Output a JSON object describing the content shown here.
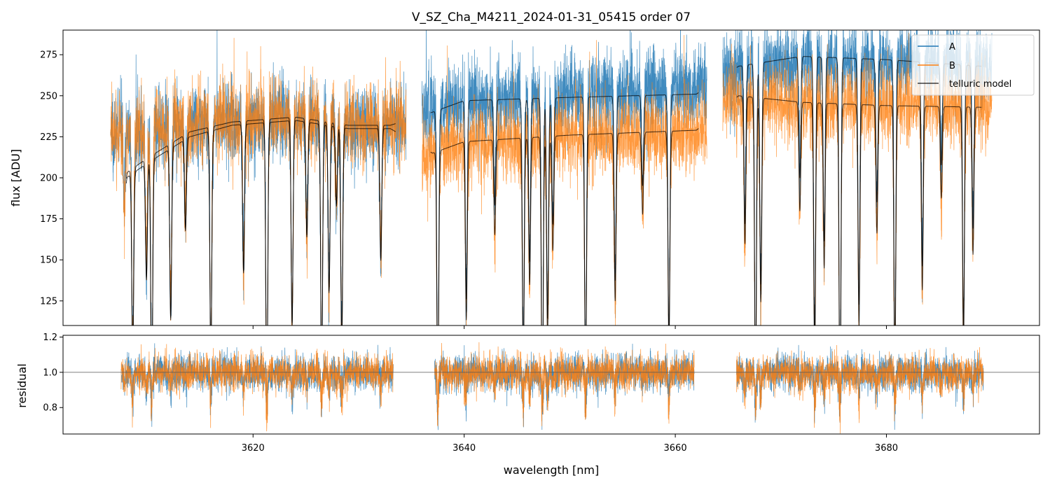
{
  "chart_data": {
    "type": "line",
    "title": "V_SZ_Cha_M4211_2024-01-31_05415  order 07",
    "xlabel": "wavelength [nm]",
    "xlim": [
      3602,
      3694.5
    ],
    "x_ticks": [
      "3620",
      "3640",
      "3660",
      "3680"
    ],
    "x_tick_values": [
      3620,
      3640,
      3660,
      3680
    ],
    "colors": {
      "A": "#1f77b4",
      "B": "#ff7f0e",
      "telluric": "#000000"
    },
    "legend": {
      "placement": "top-right",
      "entries": [
        "A",
        "B",
        "telluric model"
      ]
    },
    "panels": [
      {
        "name": "flux",
        "ylabel": "flux [ADU]",
        "ylim": [
          110,
          290
        ],
        "y_ticks": [
          "125",
          "150",
          "175",
          "200",
          "225",
          "250",
          "275"
        ],
        "y_tick_values": [
          125,
          150,
          175,
          200,
          225,
          250,
          275
        ],
        "segments": [
          [
            3606.5,
            3634.5
          ],
          [
            3636,
            3663
          ],
          [
            3664.5,
            3690
          ]
        ],
        "series": [
          {
            "name": "A",
            "noise": 12,
            "continuum": [
              [
                3606.5,
                228
              ],
              [
                3609,
                228
              ],
              [
                3612,
                232
              ],
              [
                3616,
                234
              ],
              [
                3620,
                236
              ],
              [
                3624,
                237
              ],
              [
                3630,
                232
              ],
              [
                3634.5,
                234
              ],
              [
                3636,
                240
              ],
              [
                3640,
                246
              ],
              [
                3650,
                252
              ],
              [
                3663,
                255
              ],
              [
                3664.5,
                265
              ],
              [
                3670,
                270
              ],
              [
                3680,
                270
              ],
              [
                3690,
                268
              ]
            ]
          },
          {
            "name": "B",
            "noise": 12,
            "continuum": [
              [
                3606.5,
                228
              ],
              [
                3609,
                228
              ],
              [
                3612,
                232
              ],
              [
                3616,
                234
              ],
              [
                3620,
                236
              ],
              [
                3624,
                237
              ],
              [
                3630,
                232
              ],
              [
                3634.5,
                234
              ],
              [
                3636,
                215
              ],
              [
                3640,
                220
              ],
              [
                3650,
                225
              ],
              [
                3663,
                228
              ],
              [
                3664.5,
                245
              ],
              [
                3670,
                245
              ],
              [
                3680,
                245
              ],
              [
                3690,
                243
              ]
            ]
          }
        ],
        "telluric_models": [
          {
            "name": "telluric model A",
            "continuum": [
              [
                3608,
                203
              ],
              [
                3610,
                212
              ],
              [
                3614,
                228
              ],
              [
                3618,
                234
              ],
              [
                3624,
                237
              ],
              [
                3627,
                234
              ],
              [
                3629,
                232
              ],
              [
                3633,
                232
              ],
              [
                3637,
                240
              ],
              [
                3640,
                247
              ],
              [
                3650,
                249
              ],
              [
                3662,
                251
              ],
              [
                3666,
                268
              ],
              [
                3672,
                274
              ],
              [
                3680,
                272
              ],
              [
                3689,
                268
              ]
            ]
          },
          {
            "name": "telluric model B",
            "continuum": [
              [
                3608,
                200
              ],
              [
                3610,
                209
              ],
              [
                3614,
                225
              ],
              [
                3618,
                232
              ],
              [
                3624,
                235
              ],
              [
                3627,
                232
              ],
              [
                3629,
                230
              ],
              [
                3633,
                230
              ],
              [
                3637,
                215
              ],
              [
                3640,
                222
              ],
              [
                3650,
                226
              ],
              [
                3662,
                229
              ],
              [
                3666,
                250
              ],
              [
                3672,
                246
              ],
              [
                3680,
                244
              ],
              [
                3689,
                243
              ]
            ]
          }
        ],
        "absorption_lines_nm": [
          3607.8,
          3608.6,
          3609.9,
          3610.4,
          3612.2,
          3613.6,
          3616.0,
          3619.1,
          3621.3,
          3623.7,
          3625.1,
          3626.5,
          3627.2,
          3627.9,
          3628.4,
          3632.1,
          3637.5,
          3640.2,
          3642.9,
          3645.6,
          3646.2,
          3647.4,
          3647.9,
          3648.4,
          3651.5,
          3654.3,
          3656.9,
          3659.4,
          3666.6,
          3667.6,
          3668.1,
          3671.8,
          3673.2,
          3674.1,
          3675.6,
          3677.4,
          3679.1,
          3680.8,
          3683.4,
          3685.2,
          3687.3,
          3688.2
        ]
      },
      {
        "name": "residual",
        "ylabel": "residual",
        "ylim": [
          0.65,
          1.21
        ],
        "y_ticks": [
          "0.8",
          "1.0",
          "1.2"
        ],
        "y_tick_values": [
          0.8,
          1.0,
          1.2
        ],
        "reference_line": 1.0,
        "segments": [
          [
            3607.5,
            3633.3
          ],
          [
            3637.2,
            3661.8
          ],
          [
            3665.8,
            3689.2
          ]
        ],
        "series": [
          {
            "name": "A",
            "noise": 0.05
          },
          {
            "name": "B",
            "noise": 0.05
          }
        ]
      }
    ]
  }
}
